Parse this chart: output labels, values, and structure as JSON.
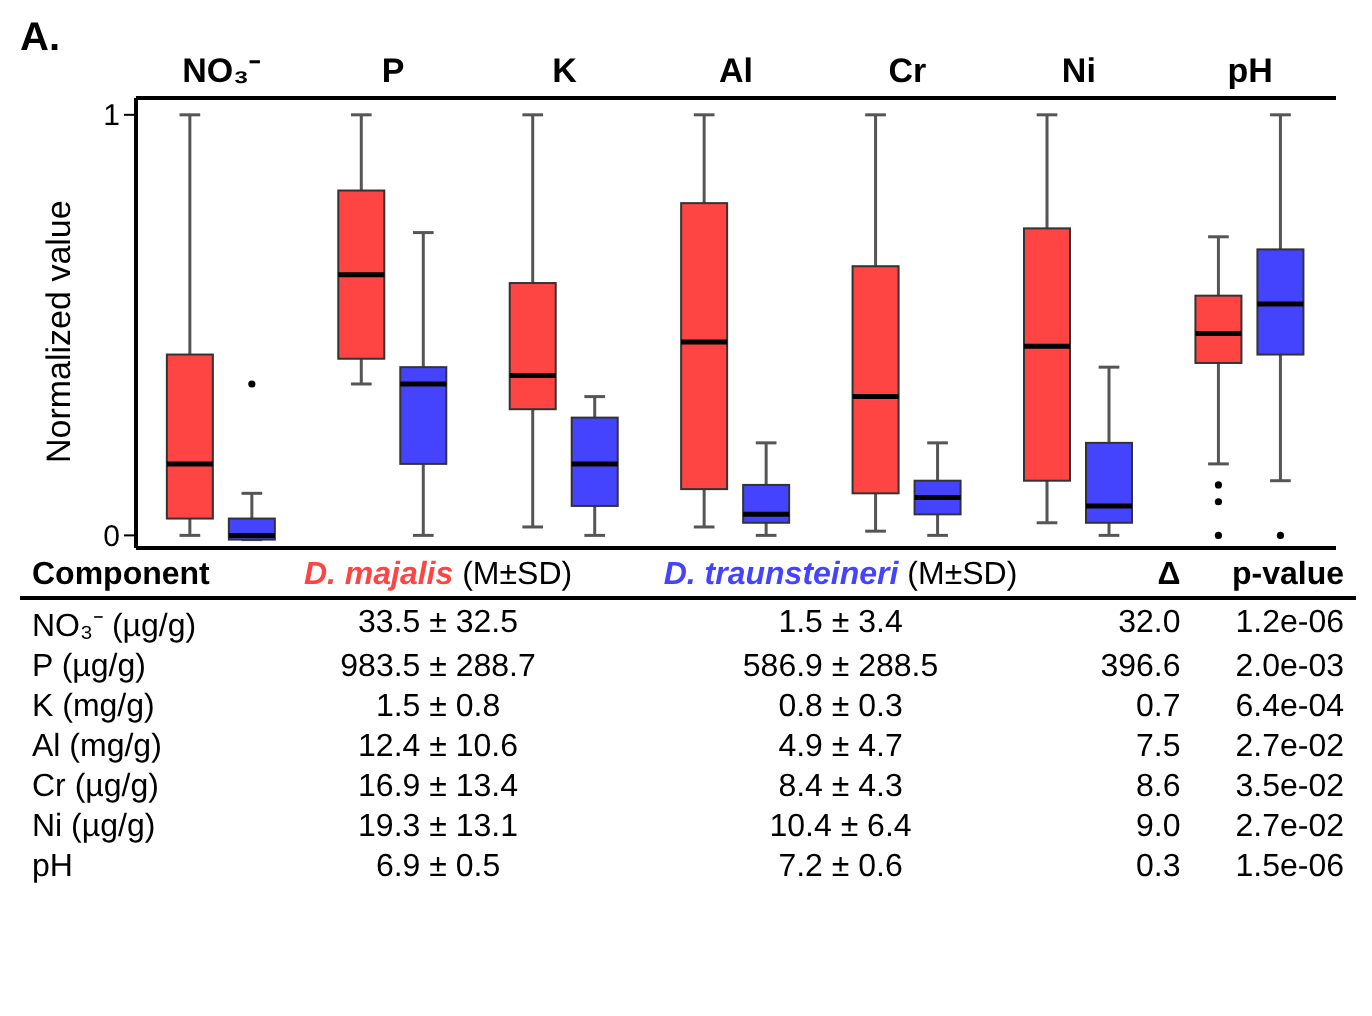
{
  "chart_data": {
    "type": "box",
    "title": "A.",
    "ylabel": "Normalized value",
    "categories": [
      "NO₃⁻",
      "P",
      "K",
      "Al",
      "Cr",
      "Ni",
      "pH"
    ],
    "ylim": [
      -0.03,
      1.04
    ],
    "yticks": [
      0,
      1
    ],
    "grid": false,
    "legend": false,
    "series": [
      {
        "name": "D. majalis",
        "color": "#ff4444",
        "boxes": [
          {
            "low": 0,
            "q1": 0.04,
            "median": 0.17,
            "q3": 0.43,
            "high": 1
          },
          {
            "low": 0.36,
            "q1": 0.42,
            "median": 0.62,
            "q3": 0.82,
            "high": 1
          },
          {
            "low": 0.02,
            "q1": 0.3,
            "median": 0.38,
            "q3": 0.6,
            "high": 1
          },
          {
            "low": 0.02,
            "q1": 0.11,
            "median": 0.46,
            "q3": 0.79,
            "high": 1
          },
          {
            "low": 0.01,
            "q1": 0.1,
            "median": 0.33,
            "q3": 0.64,
            "high": 1
          },
          {
            "low": 0.03,
            "q1": 0.13,
            "median": 0.45,
            "q3": 0.73,
            "high": 1
          },
          {
            "low": 0.17,
            "q1": 0.41,
            "median": 0.48,
            "q3": 0.57,
            "high": 0.71,
            "outliers": [
              0.12,
              0.08,
              0
            ]
          }
        ]
      },
      {
        "name": "D. traunsteineri",
        "color": "#4444ff",
        "boxes": [
          {
            "low": -0.01,
            "q1": -0.01,
            "median": 0,
            "q3": 0.04,
            "high": 0.1,
            "outliers": [
              0.36
            ]
          },
          {
            "low": 0,
            "q1": 0.17,
            "median": 0.36,
            "q3": 0.4,
            "high": 0.72
          },
          {
            "low": 0,
            "q1": 0.07,
            "median": 0.17,
            "q3": 0.28,
            "high": 0.33
          },
          {
            "low": 0,
            "q1": 0.03,
            "median": 0.05,
            "q3": 0.12,
            "high": 0.22
          },
          {
            "low": 0,
            "q1": 0.05,
            "median": 0.09,
            "q3": 0.13,
            "high": 0.22
          },
          {
            "low": 0,
            "q1": 0.03,
            "median": 0.07,
            "q3": 0.22,
            "high": 0.4
          },
          {
            "low": 0.13,
            "q1": 0.43,
            "median": 0.55,
            "q3": 0.68,
            "high": 1,
            "outliers": [
              0
            ]
          }
        ]
      }
    ],
    "annotations": [
      "Component",
      "(M±SD)",
      "(M±SD)",
      "Δ",
      "p-value",
      "NO₃⁻ (µg/g)",
      "33.5 ± 32.5",
      "1.5 ± 3.4",
      "32.0",
      "1.2e-06",
      "P (µg/g)",
      "983.5 ± 288.7",
      "586.9 ± 288.5",
      "396.6",
      "2.0e-03",
      "K (mg/g)",
      "1.5 ± 0.8",
      "0.8 ± 0.3",
      "0.7",
      "6.4e-04",
      "Al (mg/g)",
      "12.4 ± 10.6",
      "4.9 ± 4.7",
      "7.5",
      "2.7e-02",
      "Cr (µg/g)",
      "16.9 ± 13.4",
      "8.4 ± 4.3",
      "8.6",
      "3.5e-02",
      "Ni (µg/g)",
      "19.3 ± 13.1",
      "10.4 ± 6.4",
      "9.0",
      "2.7e-02",
      "pH",
      "6.9 ± 0.5",
      "7.2 ± 0.6",
      "0.3",
      "1.5e-06"
    ]
  }
}
